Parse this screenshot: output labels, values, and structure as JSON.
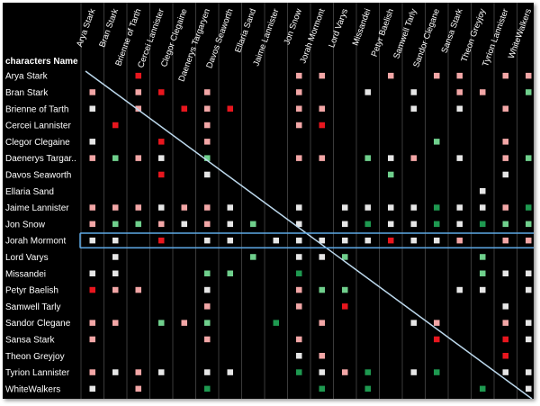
{
  "chart_data": {
    "type": "heatmap",
    "row_header": "characters Name",
    "columns": [
      "Arya Stark",
      "Bran Stark",
      "Brienne of Tarth",
      "Cercei Lannister",
      "Clegor Clegaine",
      "Daenerys Targaryen",
      "Davos Seaworth",
      "Ellaria Sand",
      "Jaime Lannister",
      "Jon Snow",
      "Jorah Mormont",
      "Lord Varys",
      "Missandei",
      "Petyr Baelish",
      "Samwell Tarly",
      "Sandor Clegane",
      "Sansa Stark",
      "Theon Greyjoy",
      "Tyrion Lannister",
      "WhiteWalkers"
    ],
    "rows": [
      "Arya Stark",
      "Bran Stark",
      "Brienne of Tarth",
      "Cercei Lannister",
      "Clegor Clegaine",
      "Daenerys Targar..",
      "Davos Seaworth",
      "Ellaria Sand",
      "Jaime Lannister",
      "Jon Snow",
      "Jorah Mormont",
      "Lord Varys",
      "Missandei",
      "Petyr Baelish",
      "Samwell Tarly",
      "Sandor Clegane",
      "Sansa Stark",
      "Theon Greyjoy",
      "Tyrion Lannister",
      "WhiteWalkers"
    ],
    "highlighted_row": "Jorah Mormont",
    "legend_codes": {
      "w": "neutral",
      "p": "light red",
      "r": "red",
      "g": "light green",
      "G": "dark green"
    },
    "cells": [
      "..r......pp..p.pp.pp",
      "p.pr.p...p..w.w.pp.g",
      "w.p.rpr..pp...w.w.p.",
      ".r...p...pr.........",
      "w..r.p.........g..p.",
      "pgpw.g...pp.gwp.w.pg",
      "...r.w.......g....w.",
      ".................w..",
      "pppwppw..w.wwwwGwwpG",
      "pggpwpwg.w.wGwwGwGgg",
      "ww.r.ww.wwwwwrwwp.pp",
      ".w.....g.wwg.....g..",
      "ww...gg..G.......gww",
      "rpp..w...pgg....ww.w",
      ".....p...p.r......w.",
      "pp.gpg..G.p...wp..pw",
      "p....p...p.....r..rw",
      ".........wp.......r.",
      "pwpw.ww..GwpG.wG..ww",
      "w.p..G....G.G....G.w"
    ],
    "colors": {
      "w": "#e6e6e6",
      "p": "#f2a6a6",
      "r": "#e8161e",
      "g": "#6fcf8c",
      "G": "#1e9950",
      "line": "#bcd8ec",
      "highlight": "#5ea9e6"
    }
  }
}
